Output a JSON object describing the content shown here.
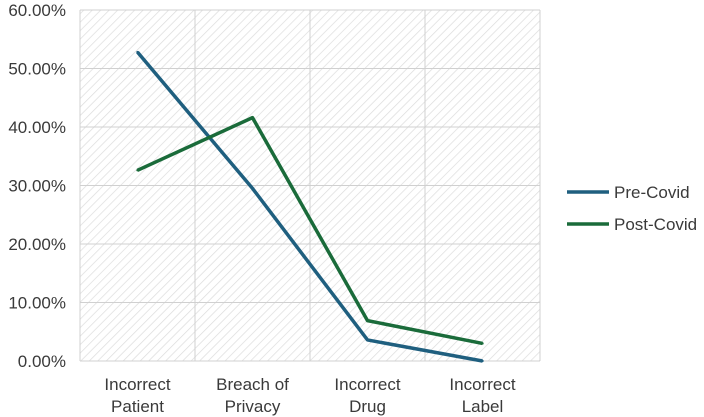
{
  "chart_data": {
    "type": "line",
    "title": "",
    "xlabel": "",
    "ylabel": "",
    "categories": [
      "Incorrect Patient",
      "Breach of Privacy",
      "Incorrect Drug",
      "Incorrect Label"
    ],
    "category_lines": [
      [
        "Incorrect",
        "Patient"
      ],
      [
        "Breach of",
        "Privacy"
      ],
      [
        "Incorrect",
        "Drug"
      ],
      [
        "Incorrect",
        "Label"
      ]
    ],
    "series": [
      {
        "name": "Pre-Covid",
        "values": [
          52.8,
          29.5,
          3.6,
          0.0
        ],
        "color": "#1f5f7f"
      },
      {
        "name": "Post-Covid",
        "values": [
          32.6,
          41.6,
          6.9,
          3.0
        ],
        "color": "#1a6b3a"
      }
    ],
    "ylim": [
      0,
      60
    ],
    "yticks": [
      0,
      10,
      20,
      30,
      40,
      50,
      60
    ],
    "ytick_labels": [
      "0.00%",
      "10.00%",
      "20.00%",
      "30.00%",
      "40.00%",
      "50.00%",
      "60.00%"
    ],
    "grid": true,
    "plot_background": "hatched light gray",
    "legend_position": "right"
  }
}
